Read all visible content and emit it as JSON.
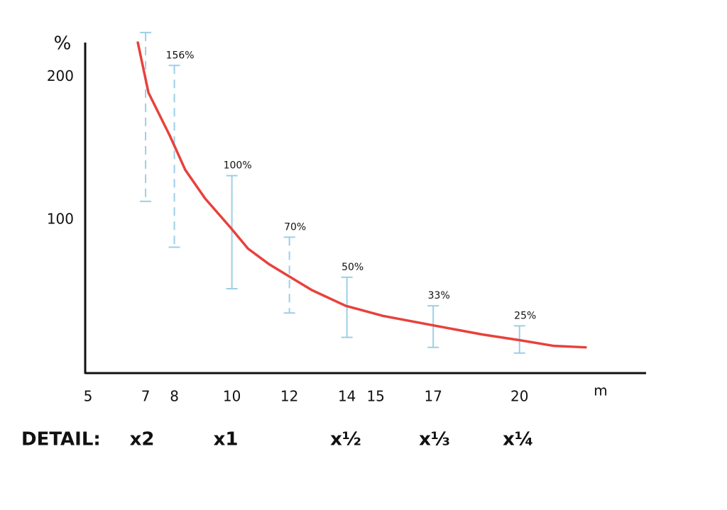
{
  "chart_data": {
    "type": "line",
    "xlabel": "m",
    "ylabel": "%",
    "xlim": [
      4.9,
      24.4
    ],
    "ylim": [
      -7,
      224
    ],
    "xticks": [
      5,
      7,
      8,
      10,
      12,
      14,
      15,
      17,
      20
    ],
    "yticks": [
      100,
      200
    ],
    "series": [
      {
        "color": "#e8413c",
        "x": [
          6.73,
          7.1,
          7.84,
          8.38,
          9.07,
          9.94,
          10.56,
          11.3,
          12.04,
          12.78,
          13.96,
          15.25,
          17.1,
          18.7,
          20.01,
          21.2,
          22.3
        ],
        "values": [
          224,
          189,
          159,
          135,
          115,
          95,
          80,
          69,
          60,
          51,
          40,
          33,
          26,
          20,
          16,
          12,
          11
        ]
      }
    ],
    "error_bars": [
      {
        "x": 7,
        "low": 113,
        "high": 231,
        "dashed": true
      },
      {
        "x": 8,
        "low": 81,
        "high": 208,
        "dashed": true,
        "label": "156%"
      },
      {
        "x": 10,
        "low": 52,
        "high": 131,
        "dashed": false,
        "label": "100%"
      },
      {
        "x": 12,
        "low": 35,
        "high": 88,
        "dashed": true,
        "label": "70%"
      },
      {
        "x": 14,
        "low": 18,
        "high": 60,
        "dashed": false,
        "label": "50%"
      },
      {
        "x": 17,
        "low": 11,
        "high": 40,
        "dashed": false,
        "label": "33%"
      },
      {
        "x": 20,
        "low": 7,
        "high": 26,
        "dashed": false,
        "label": "25%"
      }
    ],
    "error_bar_color": "#9ccfe6",
    "detail": {
      "label": "DETAIL:",
      "factors": [
        "x2",
        "x1",
        "x½",
        "x⅓",
        "x¼"
      ]
    }
  }
}
